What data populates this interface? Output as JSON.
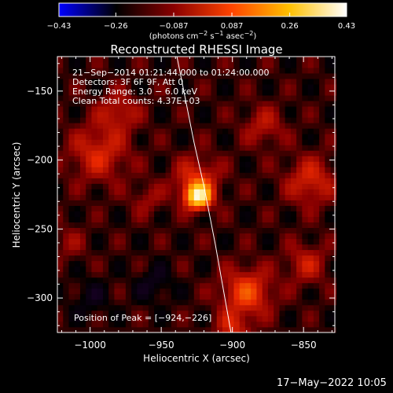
{
  "chart_data": {
    "type": "heatmap",
    "title": "Reconstructed RHESSI Image",
    "xlabel": "Heliocentric X (arcsec)",
    "ylabel": "Heliocentric Y (arcsec)",
    "xlim": [
      -1023,
      -828
    ],
    "ylim": [
      -325,
      -125
    ],
    "xticks": [
      -1000,
      -950,
      -900,
      -850
    ],
    "xtick_labels": [
      "−1000",
      "−950",
      "−900",
      "−850"
    ],
    "yticks": [
      -150,
      -200,
      -250,
      -300
    ],
    "ytick_labels": [
      "−150",
      "−200",
      "−250",
      "−300"
    ],
    "grid": false,
    "colorbar": {
      "min": -0.43,
      "max": 0.43,
      "tick_values": [
        -0.43,
        -0.26,
        -0.087,
        0.087,
        0.26,
        0.43
      ],
      "tick_labels": [
        "−0.43",
        "−0.26",
        "−0.087",
        "0.087",
        "0.26",
        "0.43"
      ],
      "unit_label_parts": [
        "(photons cm",
        "−2",
        " s",
        "−1",
        " asec",
        "−2",
        ")"
      ],
      "colors": [
        "#0000ff",
        "#000000",
        "#8a0000",
        "#ff4400",
        "#ffc000",
        "#ffffff"
      ]
    },
    "annotations": [
      "21−Sep−2014 01:21:44.000 to 01:24:00.000",
      "Detectors: 3F 6F 9F, Att 0",
      "Energy Range: 3.0 − 6.0 keV",
      "Clean    Total counts: 4.37E+03"
    ],
    "peak_text": "Position of Peak = [−924,−226]",
    "peak": {
      "x": -924,
      "y": -226,
      "value": 0.43
    },
    "sources": [
      {
        "x": -924,
        "y": -226,
        "sigma": 6,
        "amp": 0.34
      },
      {
        "x": -925,
        "y": -214,
        "sigma": 11,
        "amp": 0.11
      },
      {
        "x": -994,
        "y": -195,
        "sigma": 14,
        "amp": 0.1
      },
      {
        "x": -980,
        "y": -165,
        "sigma": 10,
        "amp": 0.08
      },
      {
        "x": -890,
        "y": -296,
        "sigma": 12,
        "amp": 0.14
      },
      {
        "x": -900,
        "y": -322,
        "sigma": 8,
        "amp": 0.09
      },
      {
        "x": -845,
        "y": -215,
        "sigma": 12,
        "amp": 0.1
      },
      {
        "x": -848,
        "y": -275,
        "sigma": 10,
        "amp": 0.08
      },
      {
        "x": -878,
        "y": -175,
        "sigma": 10,
        "amp": 0.07
      },
      {
        "x": -960,
        "y": -228,
        "sigma": 8,
        "amp": 0.05
      },
      {
        "x": -1015,
        "y": -260,
        "sigma": 9,
        "amp": 0.04
      },
      {
        "x": -955,
        "y": -290,
        "sigma": 9,
        "amp": -0.05
      },
      {
        "x": -1000,
        "y": -300,
        "sigma": 10,
        "amp": -0.04
      }
    ],
    "limb_curve": [
      [
        -939,
        -125
      ],
      [
        -927,
        -187
      ],
      [
        -920,
        -219
      ],
      [
        -912,
        -261
      ],
      [
        -901,
        -325
      ]
    ]
  },
  "timestamp": "17−May−2022 10:05"
}
